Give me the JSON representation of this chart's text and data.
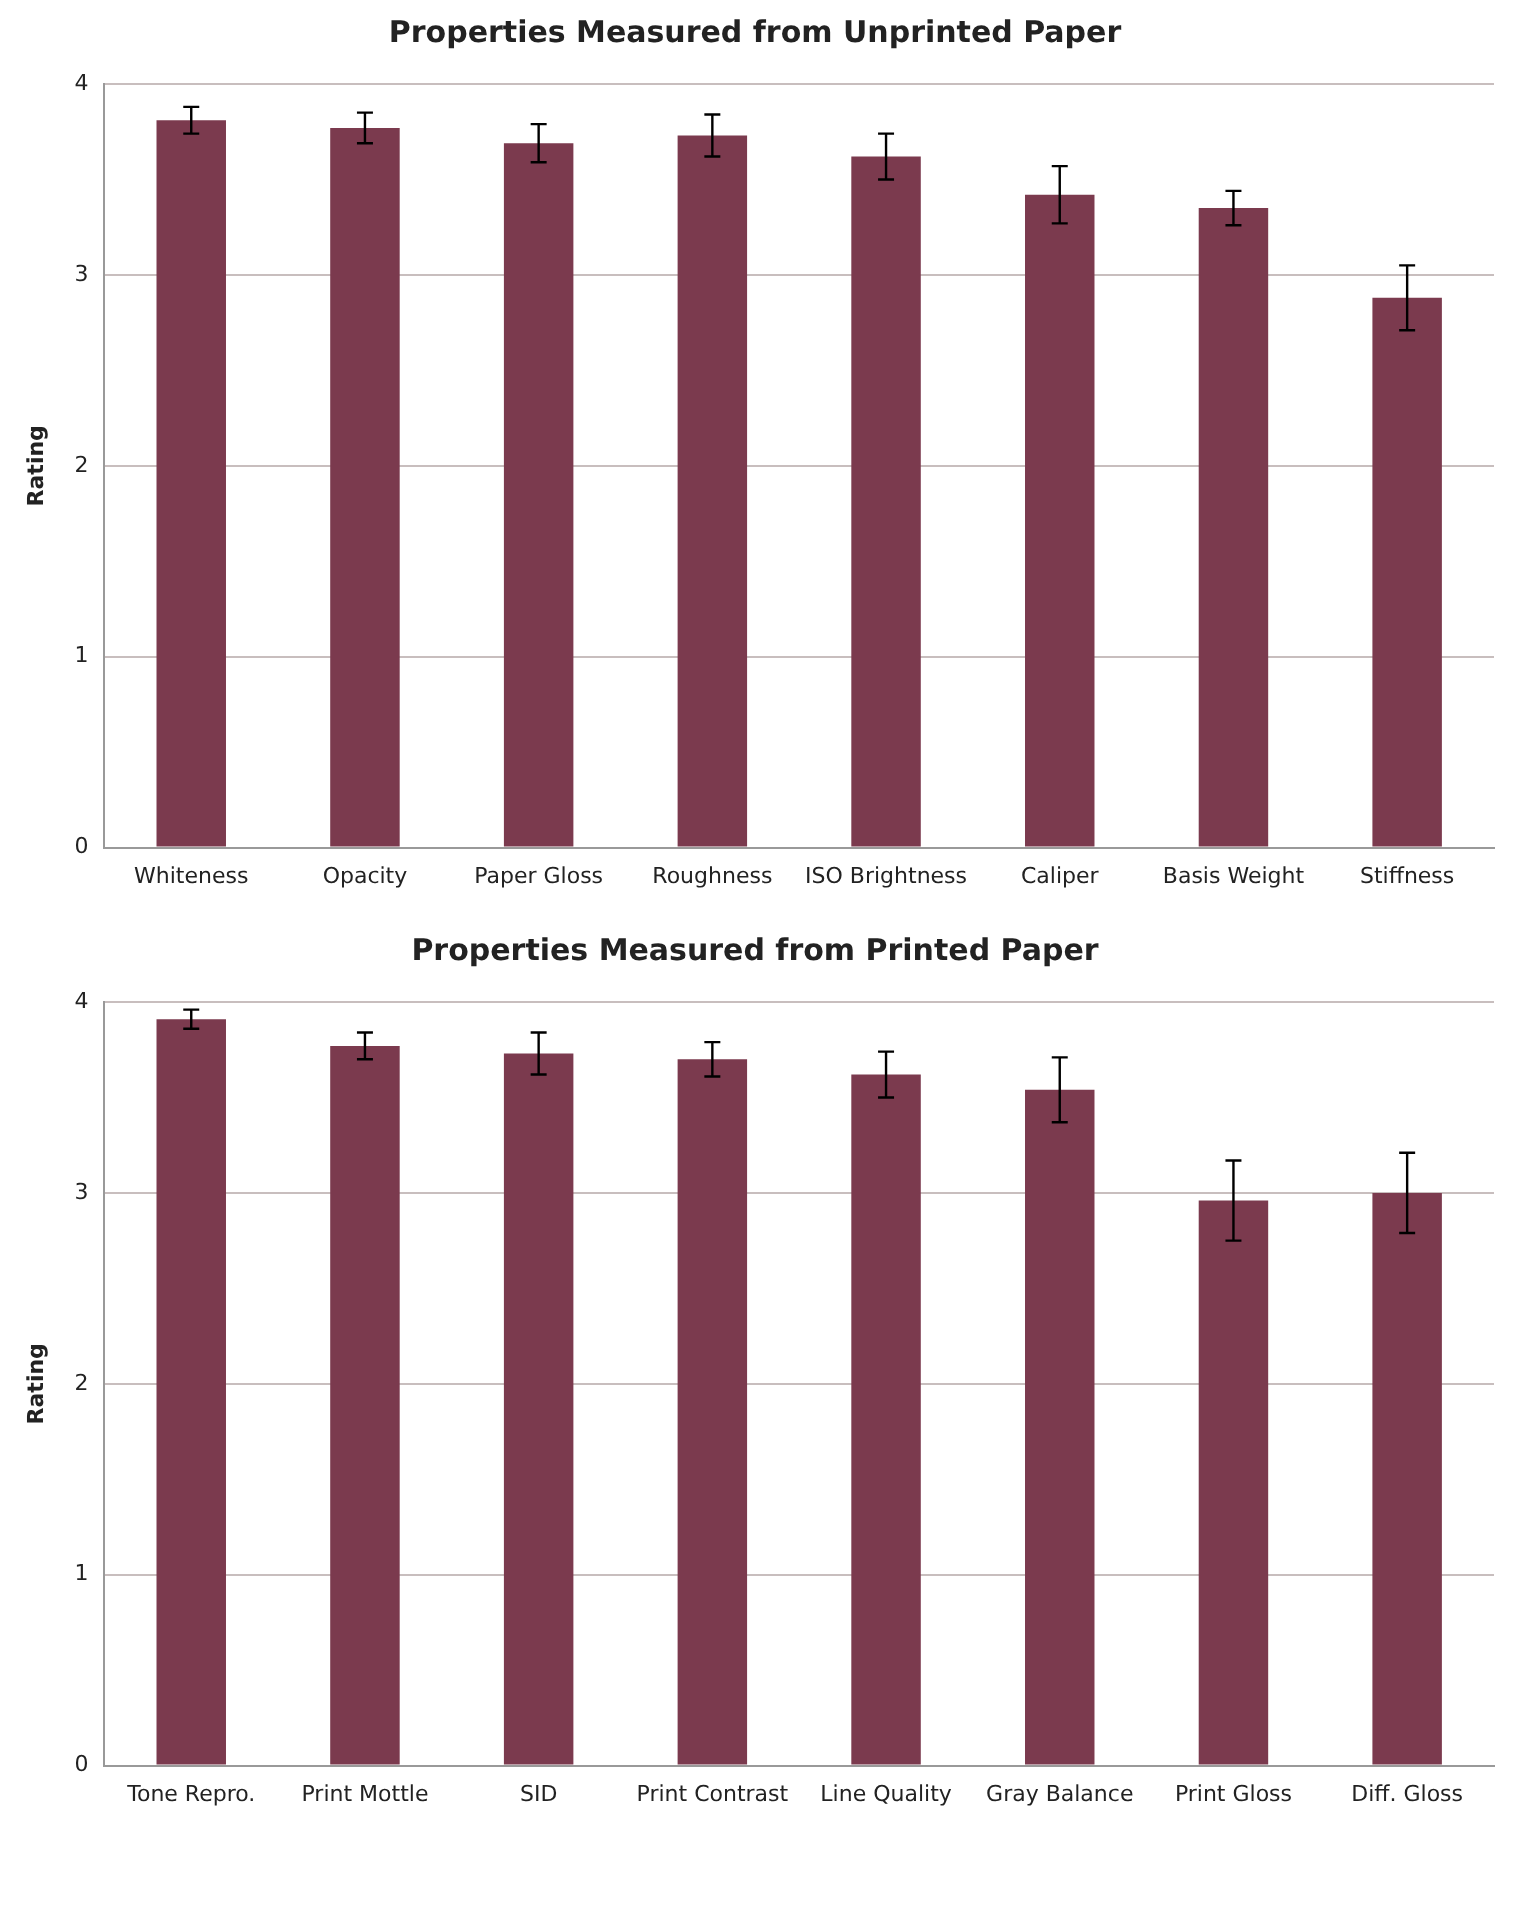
{
  "chart_data": [
    {
      "type": "bar",
      "title": "Properties Measured from Unprinted Paper",
      "ylabel": "Rating",
      "categories": [
        "Whiteness",
        "Opacity",
        "Paper Gloss",
        "Roughness",
        "ISO Brightness",
        "Caliper",
        "Basis Weight",
        "Stiffness"
      ],
      "values": [
        3.81,
        3.77,
        3.69,
        3.73,
        3.62,
        3.42,
        3.35,
        2.88
      ],
      "errors": [
        0.07,
        0.08,
        0.1,
        0.11,
        0.12,
        0.15,
        0.09,
        0.17
      ],
      "color": "#7b3a4e",
      "ylim": [
        0,
        4
      ],
      "yticks": [
        0,
        1,
        2,
        3,
        4
      ],
      "grid": "y"
    },
    {
      "type": "bar",
      "title": "Properties Measured from Printed Paper",
      "ylabel": "Rating",
      "categories": [
        "Tone Repro.",
        "Print Mottle",
        "SID",
        "Print Contrast",
        "Line Quality",
        "Gray Balance",
        "Print Gloss",
        "Diff. Gloss"
      ],
      "values": [
        3.91,
        3.77,
        3.73,
        3.7,
        3.62,
        3.54,
        2.96,
        3.0
      ],
      "errors": [
        0.05,
        0.07,
        0.11,
        0.09,
        0.12,
        0.17,
        0.21,
        0.21
      ],
      "color": "#7b3a4e",
      "ylim": [
        0,
        4
      ],
      "yticks": [
        0,
        1,
        2,
        3,
        4
      ],
      "grid": "y"
    }
  ]
}
